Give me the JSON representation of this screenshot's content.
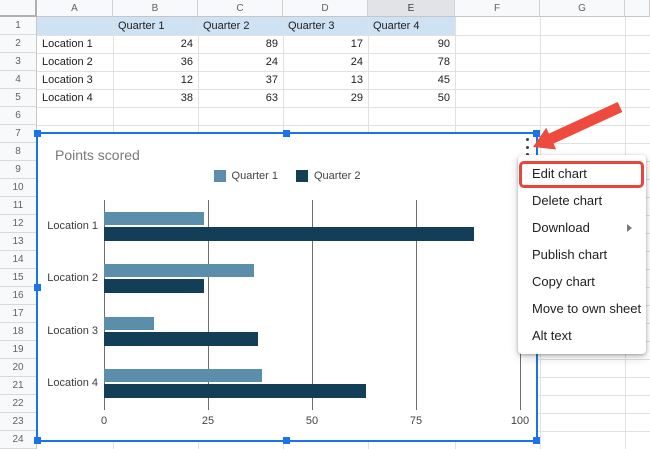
{
  "sheet": {
    "column_headers": [
      "A",
      "B",
      "C",
      "D",
      "E",
      "F",
      "G"
    ],
    "active_column": "E",
    "row_count": 24,
    "header_row_fill": "#cfe2f3",
    "table": {
      "header_row": [
        "",
        "Quarter 1",
        "Quarter 2",
        "Quarter 3",
        "Quarter 4"
      ],
      "rows": [
        [
          "Location 1",
          "24",
          "89",
          "17",
          "90"
        ],
        [
          "Location 2",
          "36",
          "24",
          "24",
          "78"
        ],
        [
          "Location 3",
          "12",
          "37",
          "13",
          "45"
        ],
        [
          "Location 4",
          "38",
          "63",
          "29",
          "50"
        ]
      ]
    }
  },
  "chart_data": {
    "type": "bar",
    "orientation": "horizontal",
    "title": "Points scored",
    "categories": [
      "Location 1",
      "Location 2",
      "Location 3",
      "Location 4"
    ],
    "series": [
      {
        "name": "Quarter 1",
        "color": "#5b8eab",
        "values": [
          24,
          36,
          12,
          38
        ]
      },
      {
        "name": "Quarter 2",
        "color": "#123e58",
        "values": [
          89,
          24,
          37,
          63
        ]
      }
    ],
    "xlim": [
      0,
      100
    ],
    "x_tick_labels": [
      "0",
      "25",
      "50",
      "75",
      "100"
    ],
    "grid": true,
    "grid_color": "#6e6e6e",
    "legend_position": "top"
  },
  "chart_selection": {
    "border_color": "#1a73e8"
  },
  "context_menu": {
    "items": [
      {
        "label": "Edit chart",
        "highlighted": true,
        "submenu": false
      },
      {
        "label": "Delete chart",
        "highlighted": false,
        "submenu": false
      },
      {
        "label": "Download",
        "highlighted": false,
        "submenu": true
      },
      {
        "label": "Publish chart",
        "highlighted": false,
        "submenu": false
      },
      {
        "label": "Copy chart",
        "highlighted": false,
        "submenu": false
      },
      {
        "label": "Move to own sheet",
        "highlighted": false,
        "submenu": false
      },
      {
        "label": "Alt text",
        "highlighted": false,
        "submenu": false
      }
    ],
    "highlight_color": "#ea453d",
    "more_options_icon": "kebab-menu-icon"
  },
  "annotation": {
    "arrow_color": "#ee4b3e",
    "arrow_direction": "down-left"
  }
}
